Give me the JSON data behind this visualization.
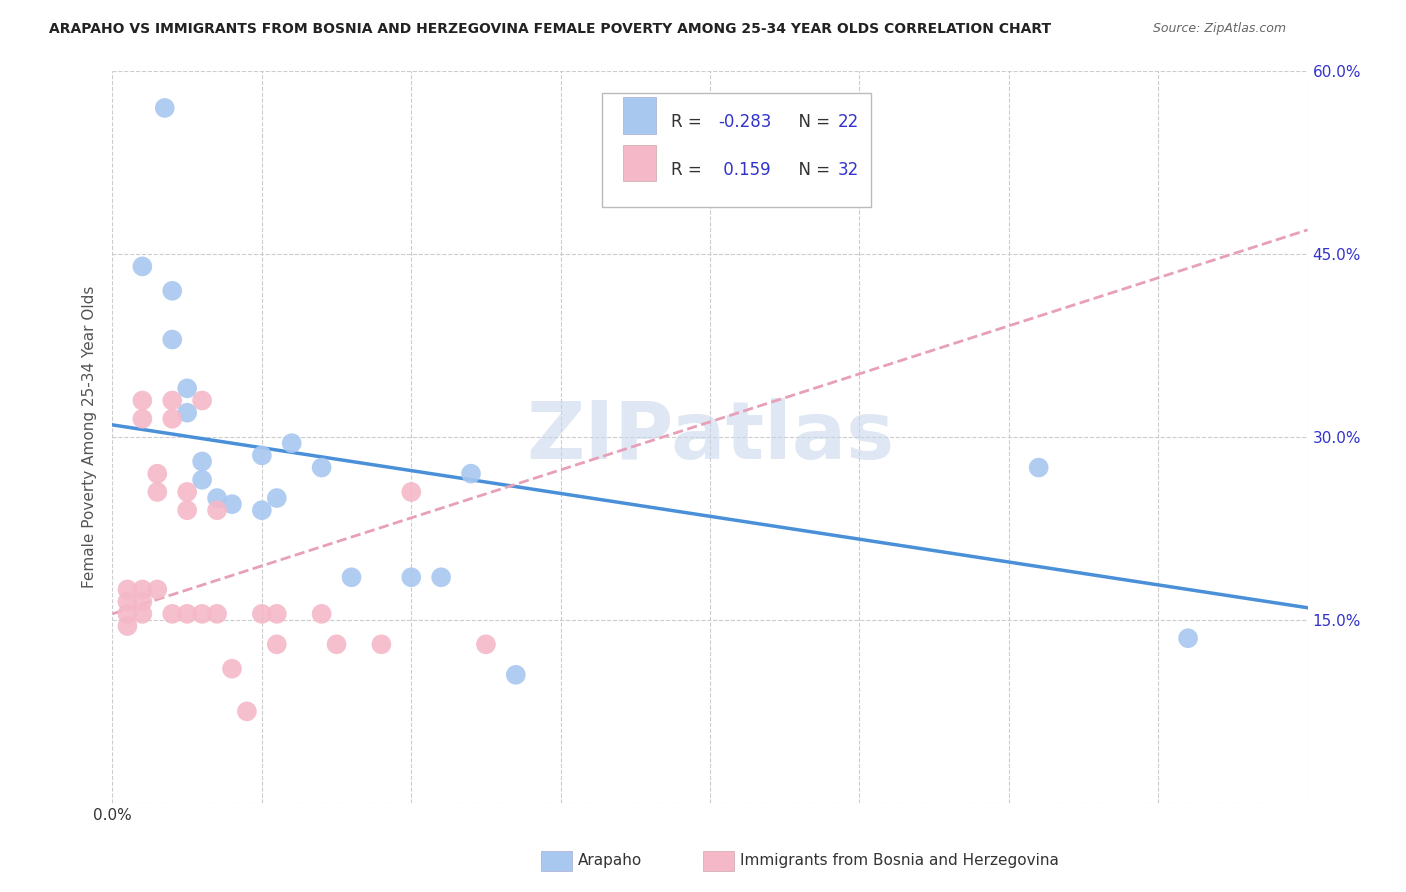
{
  "title": "ARAPAHO VS IMMIGRANTS FROM BOSNIA AND HERZEGOVINA FEMALE POVERTY AMONG 25-34 YEAR OLDS CORRELATION CHART",
  "source": "Source: ZipAtlas.com",
  "ylabel": "Female Poverty Among 25-34 Year Olds",
  "xlim": [
    0.0,
    0.8
  ],
  "ylim": [
    0.0,
    0.6
  ],
  "xticks": [
    0.0,
    0.1,
    0.2,
    0.3,
    0.4,
    0.5,
    0.6,
    0.7,
    0.8
  ],
  "xticklabels_show": {
    "0.0": "0.0%"
  },
  "yticks": [
    0.0,
    0.15,
    0.3,
    0.45,
    0.6
  ],
  "right_yticklabels": [
    "",
    "15.0%",
    "30.0%",
    "45.0%",
    "60.0%"
  ],
  "legend_r1": "-0.283",
  "legend_n1": "22",
  "legend_r2": "0.159",
  "legend_n2": "32",
  "arapaho_color": "#a8c8f0",
  "bosnia_color": "#f4b8c8",
  "arapaho_line_color": "#4a90d9",
  "bosnia_line_color": "#e8a0b8",
  "watermark": "ZIPatlas",
  "grid_color": "#cccccc",
  "text_color": "#3333cc",
  "arapaho_x": [
    0.035,
    0.02,
    0.04,
    0.04,
    0.05,
    0.05,
    0.06,
    0.06,
    0.07,
    0.08,
    0.1,
    0.1,
    0.11,
    0.12,
    0.14,
    0.16,
    0.2,
    0.22,
    0.24,
    0.27,
    0.62,
    0.72
  ],
  "arapaho_y": [
    0.57,
    0.44,
    0.42,
    0.38,
    0.34,
    0.32,
    0.28,
    0.265,
    0.25,
    0.245,
    0.24,
    0.285,
    0.25,
    0.295,
    0.275,
    0.185,
    0.185,
    0.185,
    0.27,
    0.105,
    0.275,
    0.135
  ],
  "bosnia_x": [
    0.01,
    0.01,
    0.01,
    0.01,
    0.02,
    0.02,
    0.02,
    0.02,
    0.02,
    0.03,
    0.03,
    0.03,
    0.04,
    0.04,
    0.04,
    0.05,
    0.05,
    0.05,
    0.06,
    0.06,
    0.07,
    0.07,
    0.08,
    0.09,
    0.1,
    0.11,
    0.11,
    0.14,
    0.15,
    0.18,
    0.2,
    0.25
  ],
  "bosnia_y": [
    0.175,
    0.165,
    0.155,
    0.145,
    0.175,
    0.165,
    0.155,
    0.33,
    0.315,
    0.255,
    0.27,
    0.175,
    0.315,
    0.33,
    0.155,
    0.255,
    0.24,
    0.155,
    0.33,
    0.155,
    0.24,
    0.155,
    0.11,
    0.075,
    0.155,
    0.13,
    0.155,
    0.155,
    0.13,
    0.13,
    0.255,
    0.13
  ],
  "arapaho_trend_x": [
    0.0,
    0.8
  ],
  "arapaho_trend_y": [
    0.31,
    0.16
  ],
  "bosnia_trend_x": [
    0.0,
    0.8
  ],
  "bosnia_trend_y": [
    0.155,
    0.47
  ]
}
